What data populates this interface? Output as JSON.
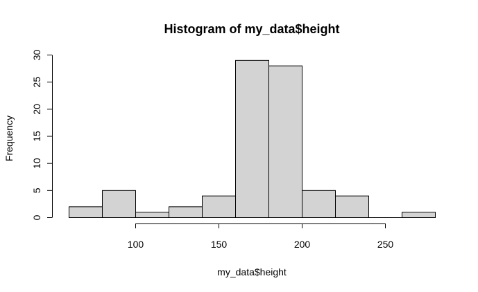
{
  "chart_data": {
    "type": "bar",
    "subtype": "histogram",
    "title": "Histogram of my_data$height",
    "xlabel": "my_data$height",
    "ylabel": "Frequency",
    "bins": [
      {
        "start": 60,
        "end": 80,
        "count": 2
      },
      {
        "start": 80,
        "end": 100,
        "count": 5
      },
      {
        "start": 100,
        "end": 120,
        "count": 1
      },
      {
        "start": 120,
        "end": 140,
        "count": 2
      },
      {
        "start": 140,
        "end": 160,
        "count": 4
      },
      {
        "start": 160,
        "end": 180,
        "count": 29
      },
      {
        "start": 180,
        "end": 200,
        "count": 28
      },
      {
        "start": 200,
        "end": 220,
        "count": 5
      },
      {
        "start": 220,
        "end": 240,
        "count": 4
      },
      {
        "start": 240,
        "end": 260,
        "count": 0
      },
      {
        "start": 260,
        "end": 280,
        "count": 1
      }
    ],
    "xlim": [
      60,
      280
    ],
    "ylim": [
      0,
      30
    ],
    "x_ticks": [
      100,
      150,
      200,
      250
    ],
    "y_ticks": [
      0,
      5,
      10,
      15,
      20,
      25,
      30
    ],
    "grid": false,
    "colors": {
      "bar_fill": "#d3d3d3",
      "bar_stroke": "#000000",
      "axis": "#000000"
    }
  }
}
